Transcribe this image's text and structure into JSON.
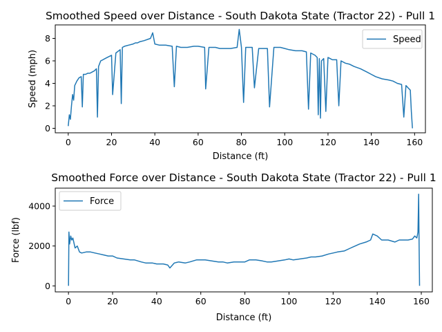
{
  "chart_data": [
    {
      "type": "line",
      "title": "Smoothed Speed over Distance - South Dakota State (Tractor 22) - Pull 1",
      "xlabel": "Distance (ft)",
      "ylabel": "Speed (mph)",
      "xlim": [
        -6,
        165
      ],
      "ylim": [
        -0.4,
        9.2
      ],
      "xticks": [
        0,
        20,
        40,
        60,
        80,
        100,
        120,
        140,
        160
      ],
      "yticks": [
        0,
        2,
        4,
        6,
        8
      ],
      "grid": false,
      "legend": "upper right",
      "series": [
        {
          "name": "Speed",
          "color": "#1f77b4",
          "x": [
            0,
            0.5,
            1,
            1.5,
            2,
            2.5,
            3,
            4,
            5,
            6,
            6.5,
            7,
            8,
            9,
            10,
            11,
            12,
            13,
            13.5,
            14,
            15,
            16,
            17,
            18,
            20,
            20.5,
            22,
            24,
            24.5,
            25,
            26,
            28,
            30,
            31,
            32,
            33,
            35,
            38,
            39,
            40,
            42,
            45,
            48,
            49,
            50,
            52,
            55,
            58,
            60,
            63,
            63.5,
            65,
            68,
            70,
            72,
            75,
            78,
            79,
            80,
            81,
            82,
            85,
            86,
            88,
            90,
            92,
            93,
            95,
            98,
            100,
            102,
            105,
            108,
            110,
            111,
            112,
            114,
            115,
            115.5,
            116,
            116.5,
            117,
            118,
            119,
            120,
            121,
            122,
            124,
            125,
            126,
            128,
            130,
            132,
            135,
            138,
            140,
            142,
            145,
            148,
            150,
            152,
            154,
            155,
            156,
            157,
            158,
            158.5,
            159
          ],
          "values": [
            0.2,
            1.2,
            0.8,
            2.0,
            3.0,
            2.5,
            3.8,
            4.2,
            4.5,
            4.6,
            1.9,
            4.8,
            4.8,
            4.9,
            4.9,
            5.0,
            5.1,
            5.3,
            1.0,
            5.5,
            6.0,
            6.1,
            6.2,
            6.3,
            6.5,
            3.0,
            6.7,
            7.0,
            2.2,
            7.2,
            7.3,
            7.4,
            7.5,
            7.6,
            7.6,
            7.7,
            7.8,
            8.0,
            8.5,
            7.5,
            7.4,
            7.4,
            7.3,
            3.7,
            7.3,
            7.2,
            7.2,
            7.3,
            7.3,
            7.2,
            3.5,
            7.2,
            7.2,
            7.1,
            7.1,
            7.1,
            7.2,
            8.8,
            7.2,
            2.3,
            7.2,
            7.2,
            3.6,
            7.1,
            7.1,
            7.1,
            1.9,
            7.2,
            7.2,
            7.1,
            7.0,
            6.9,
            6.9,
            6.8,
            1.7,
            6.7,
            6.5,
            6.3,
            1.2,
            6.2,
            0.9,
            6.0,
            6.2,
            1.5,
            6.3,
            6.2,
            6.1,
            6.1,
            2.0,
            6.0,
            5.8,
            5.7,
            5.5,
            5.3,
            5.0,
            4.8,
            4.6,
            4.4,
            4.3,
            4.2,
            4.0,
            3.9,
            1.0,
            3.8,
            3.6,
            3.4,
            1.5,
            0.0
          ]
        }
      ]
    },
    {
      "type": "line",
      "title": "Smoothed Force over Distance - South Dakota State (Tractor 22) - Pull 1",
      "xlabel": "Distance (ft)",
      "ylabel": "Force (lbf)",
      "xlim": [
        -6,
        165
      ],
      "ylim": [
        -300,
        4900
      ],
      "xticks": [
        0,
        20,
        40,
        60,
        80,
        100,
        120,
        140,
        160
      ],
      "yticks": [
        0,
        2000,
        4000
      ],
      "grid": false,
      "legend": "upper left",
      "series": [
        {
          "name": "Force",
          "color": "#1f77b4",
          "x": [
            0,
            0.2,
            0.5,
            1,
            1.5,
            2,
            3,
            4,
            5,
            6,
            8,
            10,
            12,
            14,
            16,
            18,
            20,
            22,
            25,
            28,
            30,
            33,
            35,
            38,
            40,
            43,
            45,
            46,
            48,
            50,
            53,
            55,
            58,
            60,
            62,
            65,
            68,
            70,
            72,
            75,
            78,
            80,
            82,
            85,
            88,
            90,
            92,
            95,
            98,
            100,
            102,
            105,
            108,
            110,
            112,
            115,
            118,
            120,
            122,
            125,
            128,
            130,
            132,
            135,
            137,
            138,
            140,
            142,
            145,
            148,
            150,
            152,
            154,
            156,
            157,
            158,
            158.5,
            158.8,
            159,
            159.2
          ],
          "values": [
            0,
            2700,
            2100,
            2500,
            2300,
            2400,
            1900,
            2000,
            1700,
            1650,
            1700,
            1700,
            1650,
            1600,
            1550,
            1500,
            1500,
            1400,
            1350,
            1300,
            1300,
            1200,
            1150,
            1150,
            1100,
            1100,
            1050,
            900,
            1150,
            1200,
            1150,
            1200,
            1300,
            1300,
            1300,
            1250,
            1200,
            1200,
            1150,
            1200,
            1200,
            1200,
            1300,
            1300,
            1250,
            1200,
            1200,
            1250,
            1300,
            1350,
            1300,
            1350,
            1400,
            1450,
            1450,
            1500,
            1600,
            1650,
            1700,
            1750,
            1900,
            2000,
            2100,
            2200,
            2300,
            2600,
            2500,
            2300,
            2300,
            2200,
            2300,
            2300,
            2300,
            2350,
            2500,
            2400,
            2700,
            4600,
            2200,
            0
          ]
        }
      ]
    }
  ]
}
